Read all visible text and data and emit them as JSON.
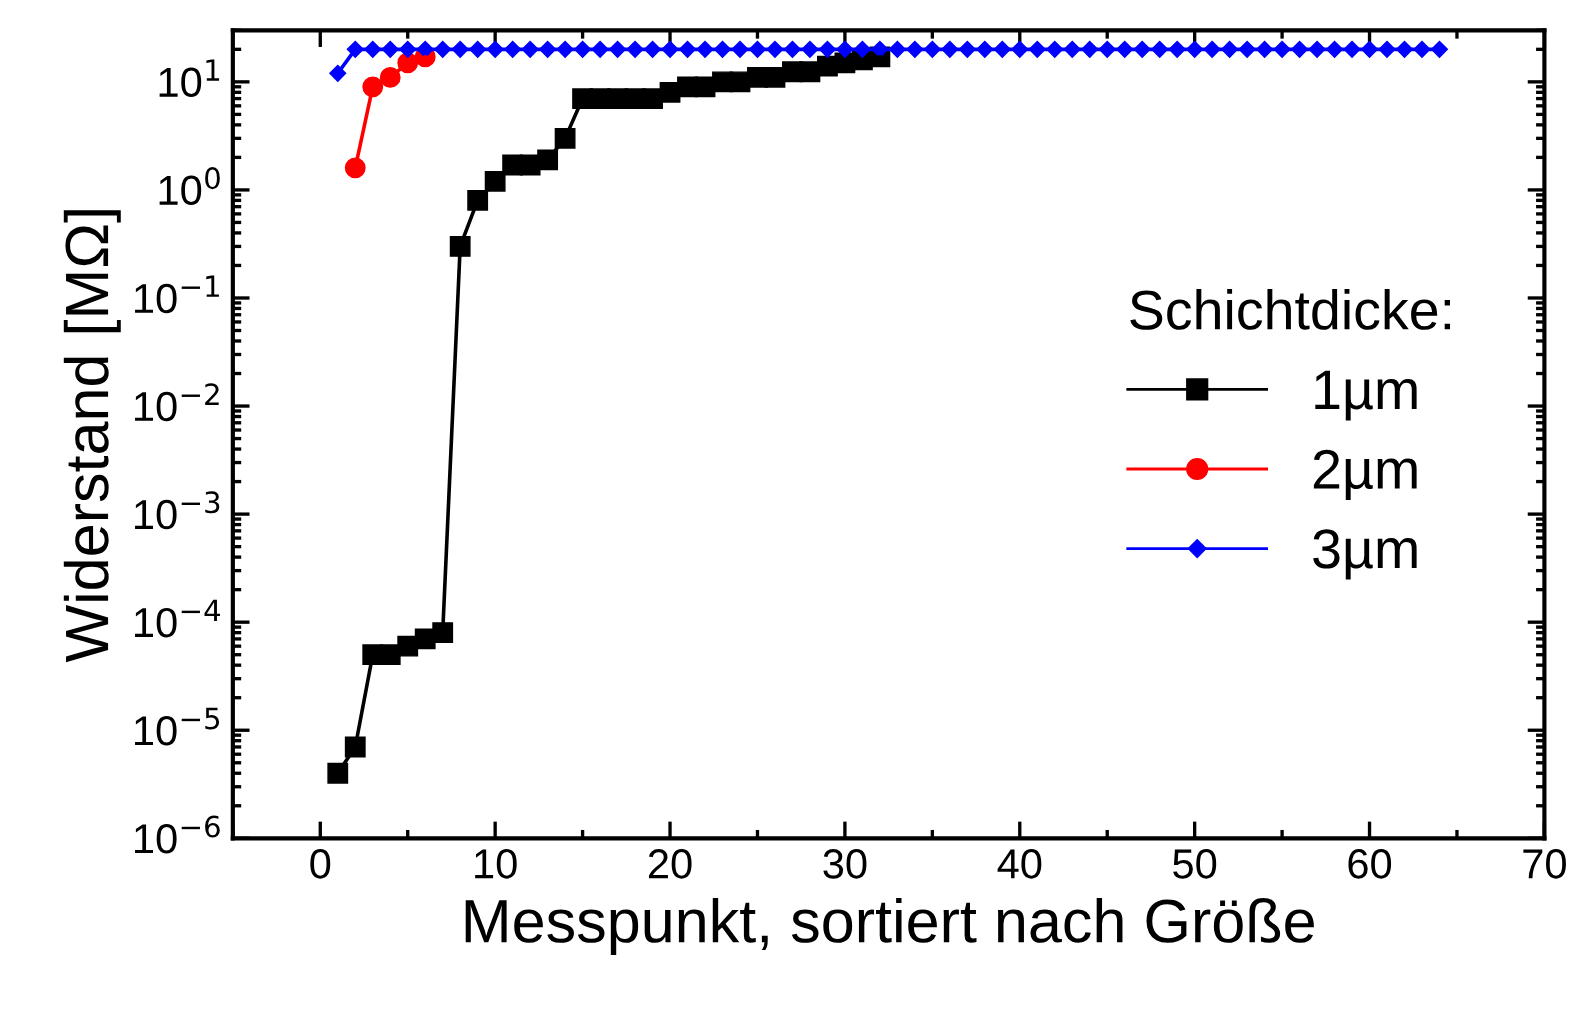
{
  "chart_data": {
    "type": "line",
    "xlabel": "Messpunkt, sortiert nach Größe",
    "ylabel": "Widerstand [MΩ]",
    "legend_title": "Schichtdicke:",
    "legend": "center right",
    "log": "y",
    "grid": false,
    "x": [
      1,
      2,
      3,
      4,
      5,
      6,
      7,
      8,
      9,
      10,
      11,
      12,
      13,
      14,
      15,
      16,
      17,
      18,
      19,
      20,
      21,
      22,
      23,
      24,
      25,
      26,
      27,
      28,
      29,
      30,
      31,
      32,
      33,
      34,
      35,
      36,
      37,
      38,
      39,
      40,
      41,
      42,
      43,
      44,
      45,
      46,
      47,
      48,
      49,
      50,
      51,
      52,
      53,
      54,
      55,
      56,
      57,
      58,
      59,
      60,
      61,
      62,
      63,
      64
    ],
    "xlim": [
      -5,
      70
    ],
    "xticks": [
      0,
      10,
      20,
      30,
      40,
      50,
      60,
      70
    ],
    "ylim": [
      1e-06,
      30
    ],
    "yticks": [
      {
        "value": 1e-06,
        "label": "10$^{−6}$"
      },
      {
        "value": 1e-05,
        "label": "10$^{−5}$"
      },
      {
        "value": 0.0001,
        "label": "10$^{−4}$"
      },
      {
        "value": 0.001,
        "label": "10$^{−3}$"
      },
      {
        "value": 0.01,
        "label": "10$^{−2}$"
      },
      {
        "value": 0.1,
        "label": "10$^{−1}$"
      },
      {
        "value": 1,
        "label": "10$^{0}$"
      },
      {
        "value": 10,
        "label": "10$^{1}$"
      }
    ],
    "series": [
      {
        "name": "1µm",
        "color": "#000000",
        "marker": "square",
        "values": [
          4e-06,
          7e-06,
          5e-05,
          5e-05,
          6e-05,
          7e-05,
          8e-05,
          0.3,
          0.8,
          1.2,
          1.7,
          1.7,
          1.9,
          3,
          7,
          7,
          7,
          7,
          7,
          8,
          9,
          9,
          10,
          10,
          11,
          11,
          12.4,
          12.4,
          14,
          15,
          16,
          17,
          null,
          null,
          null,
          null,
          null,
          null,
          null,
          null,
          null,
          null,
          null,
          null,
          null,
          null,
          null,
          null,
          null,
          null,
          null,
          null,
          null,
          null,
          null,
          null,
          null,
          null,
          null,
          null,
          null,
          null,
          null,
          null
        ]
      },
      {
        "name": "2µm",
        "color": "#ff0000",
        "marker": "circle",
        "values": [
          null,
          1.6,
          9,
          11,
          15,
          17,
          null,
          null,
          null,
          null,
          null,
          null,
          null,
          null,
          null,
          null,
          null,
          null,
          null,
          null,
          null,
          null,
          null,
          null,
          null,
          null,
          null,
          null,
          null,
          null,
          null,
          null,
          null,
          null,
          null,
          null,
          null,
          null,
          null,
          null,
          null,
          null,
          null,
          null,
          null,
          null,
          null,
          null,
          null,
          null,
          null,
          null,
          null,
          null,
          null,
          null,
          null,
          null,
          null,
          null,
          null,
          null,
          null,
          null
        ]
      },
      {
        "name": "3µm",
        "color": "#0000ff",
        "marker": "diamond",
        "values": [
          12,
          20,
          20,
          20,
          20,
          20,
          20,
          20,
          20,
          20,
          20,
          20,
          20,
          20,
          20,
          20,
          20,
          20,
          20,
          20,
          20,
          20,
          20,
          20,
          20,
          20,
          20,
          20,
          20,
          20,
          20,
          20,
          20,
          20,
          20,
          20,
          20,
          20,
          20,
          20,
          20,
          20,
          20,
          20,
          20,
          20,
          20,
          20,
          20,
          20,
          20,
          20,
          20,
          20,
          20,
          20,
          20,
          20,
          20,
          20,
          20,
          20,
          20,
          20
        ]
      }
    ]
  }
}
